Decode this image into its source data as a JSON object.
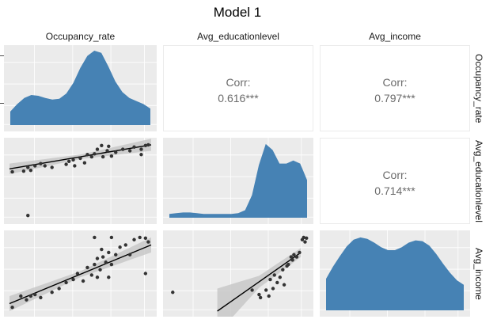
{
  "title": "Model 1",
  "variables": [
    "Occupancy_rate",
    "Avg_educationlevel",
    "Avg_income"
  ],
  "colors": {
    "density_fill": "#4682b4",
    "panel_bg": "#ebebeb",
    "gridline": "#ffffff",
    "point": "#333333",
    "fit_line": "#000000",
    "ci_band": "#c8c8c8",
    "corr_text": "#6b6b6b"
  },
  "correlations": [
    {
      "row": "Occupancy_rate",
      "col": "Avg_educationlevel",
      "label": "Corr:",
      "value": "0.616***"
    },
    {
      "row": "Occupancy_rate",
      "col": "Avg_income",
      "label": "Corr:",
      "value": "0.797***"
    },
    {
      "row": "Avg_educationlevel",
      "col": "Avg_income",
      "label": "Corr:",
      "value": "0.714***"
    }
  ],
  "chart_data": {
    "type": "scatter",
    "subtype": "pairs-matrix",
    "title": "Model 1",
    "grid": true,
    "densities": {
      "Occupancy_rate": [
        [
          0,
          0.18
        ],
        [
          0.05,
          0.28
        ],
        [
          0.1,
          0.36
        ],
        [
          0.15,
          0.4
        ],
        [
          0.2,
          0.39
        ],
        [
          0.25,
          0.36
        ],
        [
          0.3,
          0.34
        ],
        [
          0.35,
          0.35
        ],
        [
          0.4,
          0.42
        ],
        [
          0.45,
          0.56
        ],
        [
          0.5,
          0.76
        ],
        [
          0.55,
          0.92
        ],
        [
          0.6,
          0.99
        ],
        [
          0.65,
          0.96
        ],
        [
          0.7,
          0.78
        ],
        [
          0.75,
          0.58
        ],
        [
          0.8,
          0.44
        ],
        [
          0.85,
          0.36
        ],
        [
          0.9,
          0.32
        ],
        [
          0.95,
          0.28
        ],
        [
          1.0,
          0.22
        ]
      ],
      "Avg_educationlevel": [
        [
          0,
          0.05
        ],
        [
          0.05,
          0.06
        ],
        [
          0.1,
          0.07
        ],
        [
          0.15,
          0.07
        ],
        [
          0.2,
          0.06
        ],
        [
          0.25,
          0.05
        ],
        [
          0.3,
          0.05
        ],
        [
          0.35,
          0.05
        ],
        [
          0.4,
          0.05
        ],
        [
          0.45,
          0.05
        ],
        [
          0.5,
          0.06
        ],
        [
          0.55,
          0.1
        ],
        [
          0.6,
          0.3
        ],
        [
          0.65,
          0.7
        ],
        [
          0.7,
          0.98
        ],
        [
          0.75,
          0.9
        ],
        [
          0.8,
          0.72
        ],
        [
          0.85,
          0.72
        ],
        [
          0.9,
          0.76
        ],
        [
          0.95,
          0.72
        ],
        [
          1.0,
          0.5
        ]
      ],
      "Avg_income": [
        [
          0,
          0.42
        ],
        [
          0.05,
          0.58
        ],
        [
          0.1,
          0.72
        ],
        [
          0.15,
          0.85
        ],
        [
          0.2,
          0.94
        ],
        [
          0.25,
          0.97
        ],
        [
          0.3,
          0.95
        ],
        [
          0.35,
          0.9
        ],
        [
          0.4,
          0.84
        ],
        [
          0.45,
          0.8
        ],
        [
          0.5,
          0.8
        ],
        [
          0.55,
          0.84
        ],
        [
          0.6,
          0.9
        ],
        [
          0.65,
          0.93
        ],
        [
          0.7,
          0.92
        ],
        [
          0.75,
          0.86
        ],
        [
          0.8,
          0.75
        ],
        [
          0.85,
          0.62
        ],
        [
          0.9,
          0.5
        ],
        [
          0.95,
          0.4
        ],
        [
          1.0,
          0.34
        ]
      ]
    },
    "scatter_panels": [
      {
        "x": "Occupancy_rate",
        "y": "Avg_educationlevel",
        "points": [
          [
            0.02,
            0.62
          ],
          [
            0.1,
            0.63
          ],
          [
            0.13,
            0.68
          ],
          [
            0.15,
            0.64
          ],
          [
            0.18,
            0.7
          ],
          [
            0.22,
            0.73
          ],
          [
            0.25,
            0.7
          ],
          [
            0.3,
            0.68
          ],
          [
            0.4,
            0.72
          ],
          [
            0.42,
            0.76
          ],
          [
            0.45,
            0.78
          ],
          [
            0.5,
            0.8
          ],
          [
            0.53,
            0.74
          ],
          [
            0.55,
            0.85
          ],
          [
            0.58,
            0.82
          ],
          [
            0.6,
            0.86
          ],
          [
            0.62,
            0.92
          ],
          [
            0.65,
            0.97
          ],
          [
            0.66,
            0.82
          ],
          [
            0.69,
            0.9
          ],
          [
            0.7,
            0.96
          ],
          [
            0.72,
            0.83
          ],
          [
            0.75,
            0.88
          ],
          [
            0.8,
            0.92
          ],
          [
            0.85,
            0.9
          ],
          [
            0.88,
            0.95
          ],
          [
            0.93,
            0.92
          ],
          [
            0.96,
            0.97
          ],
          [
            0.98,
            0.98
          ],
          [
            0.13,
            0.04
          ],
          [
            0.46,
            0.7
          ],
          [
            0.93,
            0.85
          ]
        ],
        "fit": {
          "x0": 0,
          "y0": 0.66,
          "x1": 1,
          "y1": 0.98
        },
        "ci": [
          0.07,
          0.03,
          0.08
        ]
      },
      {
        "x": "Occupancy_rate",
        "y": "Avg_income",
        "points": [
          [
            0.02,
            0.05
          ],
          [
            0.08,
            0.2
          ],
          [
            0.12,
            0.15
          ],
          [
            0.15,
            0.2
          ],
          [
            0.18,
            0.22
          ],
          [
            0.22,
            0.18
          ],
          [
            0.3,
            0.25
          ],
          [
            0.35,
            0.3
          ],
          [
            0.4,
            0.38
          ],
          [
            0.45,
            0.42
          ],
          [
            0.48,
            0.5
          ],
          [
            0.52,
            0.4
          ],
          [
            0.55,
            0.58
          ],
          [
            0.58,
            0.48
          ],
          [
            0.6,
            0.62
          ],
          [
            0.62,
            0.7
          ],
          [
            0.64,
            0.55
          ],
          [
            0.65,
            0.82
          ],
          [
            0.66,
            0.72
          ],
          [
            0.68,
            0.65
          ],
          [
            0.7,
            0.78
          ],
          [
            0.72,
            0.62
          ],
          [
            0.75,
            0.75
          ],
          [
            0.78,
            0.85
          ],
          [
            0.82,
            0.88
          ],
          [
            0.85,
            0.75
          ],
          [
            0.88,
            0.95
          ],
          [
            0.92,
            0.98
          ],
          [
            0.96,
            0.97
          ],
          [
            0.98,
            0.92
          ],
          [
            0.6,
            0.98
          ],
          [
            0.72,
            0.98
          ],
          [
            0.62,
            0.45
          ],
          [
            0.7,
            0.45
          ],
          [
            0.96,
            0.5
          ]
        ],
        "fit": {
          "x0": 0,
          "y0": 0.1,
          "x1": 1,
          "y1": 0.88
        },
        "ci": [
          0.1,
          0.04,
          0.1
        ]
      },
      {
        "x": "Avg_educationlevel",
        "y": "Avg_income",
        "points": [
          [
            0.03,
            0.25
          ],
          [
            0.6,
            0.28
          ],
          [
            0.65,
            0.22
          ],
          [
            0.66,
            0.18
          ],
          [
            0.7,
            0.28
          ],
          [
            0.72,
            0.2
          ],
          [
            0.73,
            0.42
          ],
          [
            0.75,
            0.3
          ],
          [
            0.76,
            0.48
          ],
          [
            0.78,
            0.38
          ],
          [
            0.8,
            0.45
          ],
          [
            0.82,
            0.55
          ],
          [
            0.83,
            0.35
          ],
          [
            0.85,
            0.6
          ],
          [
            0.86,
            0.62
          ],
          [
            0.88,
            0.72
          ],
          [
            0.89,
            0.68
          ],
          [
            0.9,
            0.75
          ],
          [
            0.92,
            0.72
          ],
          [
            0.94,
            0.78
          ],
          [
            0.96,
            0.95
          ],
          [
            0.97,
            0.98
          ],
          [
            0.98,
            0.92
          ],
          [
            0.99,
            0.97
          ]
        ],
        "fit": {
          "x0": 0.35,
          "y0": 0.0,
          "x1": 0.95,
          "y1": 0.78
        },
        "ci": [
          0.3,
          0.08,
          0.06
        ]
      }
    ]
  }
}
